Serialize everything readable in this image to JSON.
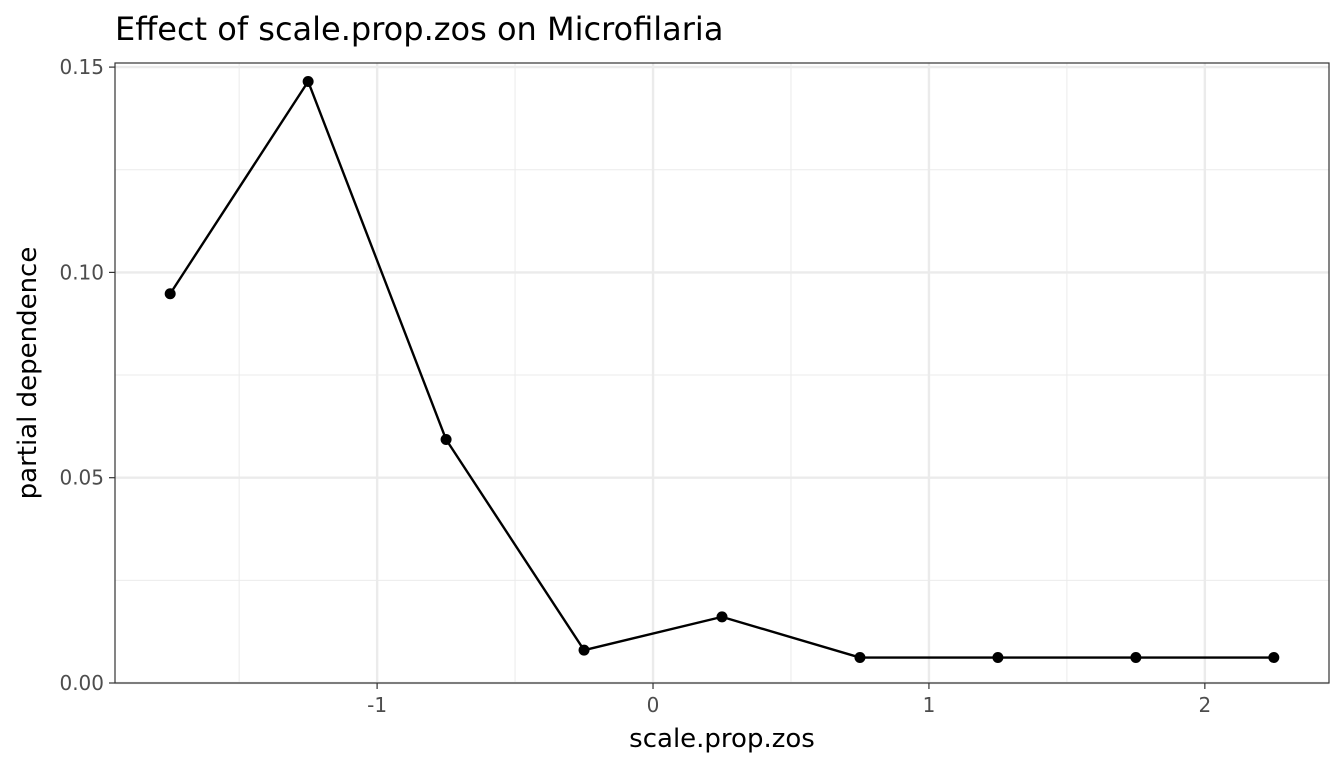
{
  "chart_data": {
    "type": "line",
    "title": "Effect of scale.prop.zos on Microfilaria",
    "xlabel": "scale.prop.zos",
    "ylabel": "partial dependence",
    "x": [
      -1.75,
      -1.25,
      -0.75,
      -0.25,
      0.25,
      0.75,
      1.25,
      1.75,
      2.25
    ],
    "series": [
      {
        "values": [
          0.0948,
          0.1465,
          0.0593,
          0.008,
          0.0161,
          0.0062,
          0.0062,
          0.0062,
          0.0062
        ]
      }
    ],
    "xlim": [
      -1.95,
      2.45
    ],
    "ylim": [
      0.0,
      0.151
    ],
    "x_ticks": [
      -1,
      0,
      1,
      2
    ],
    "x_tick_labels": [
      "-1",
      "0",
      "1",
      "2"
    ],
    "y_ticks": [
      0.0,
      0.05,
      0.1,
      0.15
    ],
    "y_tick_labels": [
      "0.00",
      "0.05",
      "0.10",
      "0.15"
    ],
    "grid": true,
    "theme": "bw",
    "colors": {
      "line": "#000000",
      "point": "#000000",
      "grid": "#ebebeb",
      "panel_border": "#333333"
    }
  }
}
